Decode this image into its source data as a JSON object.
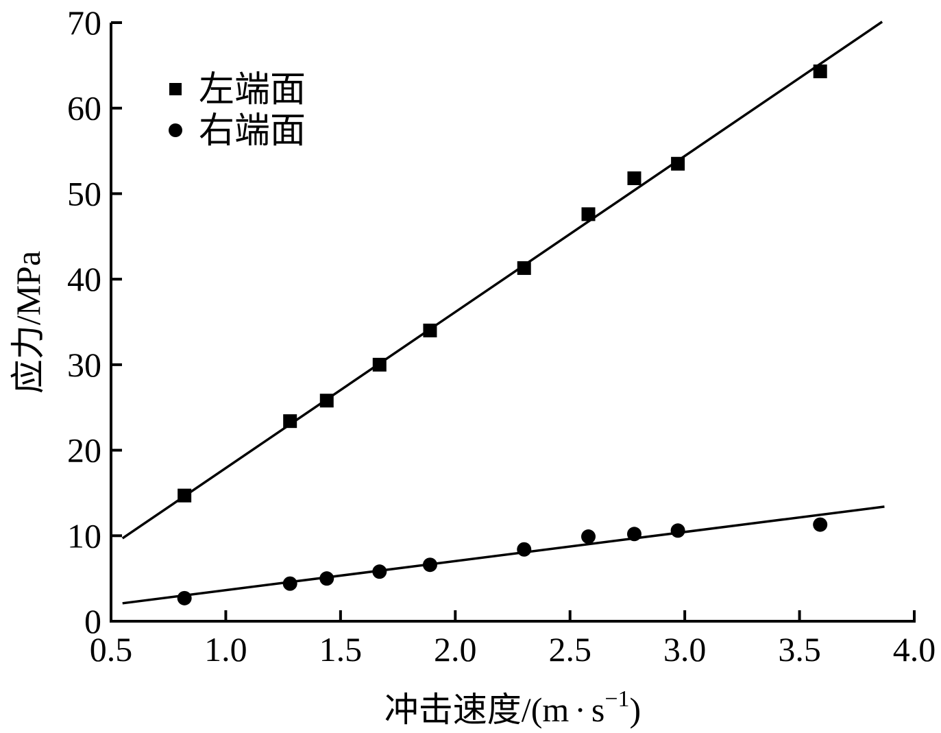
{
  "chart_data": {
    "type": "scatter",
    "title": "",
    "xlabel": "冲击速度/(m·s⁻¹)",
    "xlabel_parts": {
      "main": "冲击速度/(m",
      "dot": "·",
      "s": "s",
      "sup": "−1",
      "close": ")"
    },
    "ylabel": "应力/MPa",
    "xlim": [
      0.5,
      4.0
    ],
    "ylim": [
      0,
      70
    ],
    "xticks": [
      "0.5",
      "1.0",
      "1.5",
      "2.0",
      "2.5",
      "3.0",
      "3.5",
      "4.0"
    ],
    "yticks": [
      "0",
      "10",
      "20",
      "30",
      "40",
      "50",
      "60",
      "70"
    ],
    "grid": false,
    "legend_position": "upper-left",
    "series": [
      {
        "name": "左端面",
        "marker": "square",
        "color": "#000000",
        "x": [
          0.82,
          1.28,
          1.44,
          1.67,
          1.89,
          2.3,
          2.58,
          2.78,
          2.97,
          3.59
        ],
        "y": [
          14.7,
          23.4,
          25.8,
          30.0,
          34.0,
          41.3,
          47.6,
          51.8,
          53.5,
          64.3
        ],
        "fit_line": {
          "x": [
            0.55,
            3.86
          ],
          "y": [
            9.7,
            70.1
          ]
        }
      },
      {
        "name": "右端面",
        "marker": "circle",
        "color": "#000000",
        "x": [
          0.82,
          1.28,
          1.44,
          1.67,
          1.89,
          2.3,
          2.58,
          2.78,
          2.97,
          3.59
        ],
        "y": [
          2.7,
          4.4,
          5.0,
          5.8,
          6.6,
          8.4,
          9.9,
          10.2,
          10.6,
          11.3
        ],
        "fit_line": {
          "x": [
            0.55,
            3.87
          ],
          "y": [
            2.1,
            13.4
          ]
        }
      }
    ]
  },
  "legend": {
    "items": [
      {
        "label": "左端面",
        "marker": "square"
      },
      {
        "label": "右端面",
        "marker": "circle"
      }
    ]
  }
}
